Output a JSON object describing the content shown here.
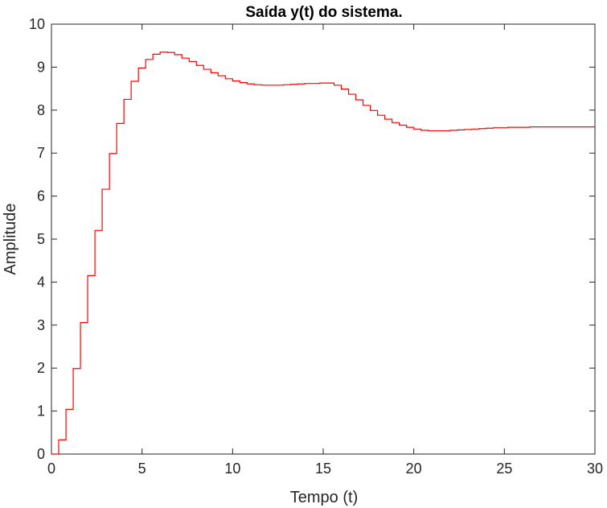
{
  "chart_data": {
    "type": "line",
    "title": "Saída y(t) do sistema.",
    "xlabel": "Tempo (t)",
    "ylabel": "Amplitude",
    "xlim": [
      0,
      30
    ],
    "ylim": [
      0,
      10
    ],
    "xticks": [
      0,
      5,
      10,
      15,
      20,
      25,
      30
    ],
    "yticks": [
      0,
      1,
      2,
      3,
      4,
      5,
      6,
      7,
      8,
      9,
      10
    ],
    "grid": false,
    "legend": "none",
    "step_interval": 0.4,
    "line_color": "#ff0000",
    "series": [
      {
        "style": "stairs",
        "x": [
          0,
          0.4,
          0.8,
          1.2,
          1.6,
          2.0,
          2.4,
          2.8,
          3.2,
          3.6,
          4.0,
          4.4,
          4.8,
          5.2,
          5.6,
          6.0,
          6.4,
          6.8,
          7.2,
          7.6,
          8.0,
          8.4,
          8.8,
          9.2,
          9.6,
          10.0,
          10.4,
          10.8,
          11.2,
          11.6,
          12.0,
          12.4,
          12.8,
          13.2,
          13.6,
          14.0,
          14.4,
          14.8,
          15.2,
          15.6,
          16.0,
          16.4,
          16.8,
          17.2,
          17.6,
          18.0,
          18.4,
          18.8,
          19.2,
          19.6,
          20.0,
          20.4,
          20.8,
          21.2,
          21.6,
          22.0,
          22.4,
          22.8,
          23.2,
          23.6,
          24.0,
          24.4,
          24.8,
          25.2,
          25.6,
          26.0,
          26.4,
          26.8,
          27.2,
          27.6,
          28.0,
          28.4,
          28.8,
          29.2,
          29.6
        ],
        "y": [
          0.0,
          0.33,
          1.04,
          1.99,
          3.06,
          4.15,
          5.2,
          6.16,
          6.99,
          7.69,
          8.25,
          8.67,
          8.98,
          9.18,
          9.3,
          9.35,
          9.34,
          9.29,
          9.21,
          9.13,
          9.04,
          8.95,
          8.87,
          8.8,
          8.73,
          8.68,
          8.64,
          8.61,
          8.59,
          8.58,
          8.58,
          8.58,
          8.59,
          8.6,
          8.61,
          8.62,
          8.62,
          8.63,
          8.63,
          8.58,
          8.49,
          8.37,
          8.24,
          8.11,
          7.99,
          7.88,
          7.79,
          7.71,
          7.65,
          7.6,
          7.56,
          7.53,
          7.52,
          7.52,
          7.52,
          7.53,
          7.54,
          7.55,
          7.56,
          7.57,
          7.58,
          7.59,
          7.59,
          7.6,
          7.6,
          7.6,
          7.61,
          7.61,
          7.61,
          7.61,
          7.61,
          7.61,
          7.61,
          7.61,
          7.61
        ]
      }
    ]
  }
}
